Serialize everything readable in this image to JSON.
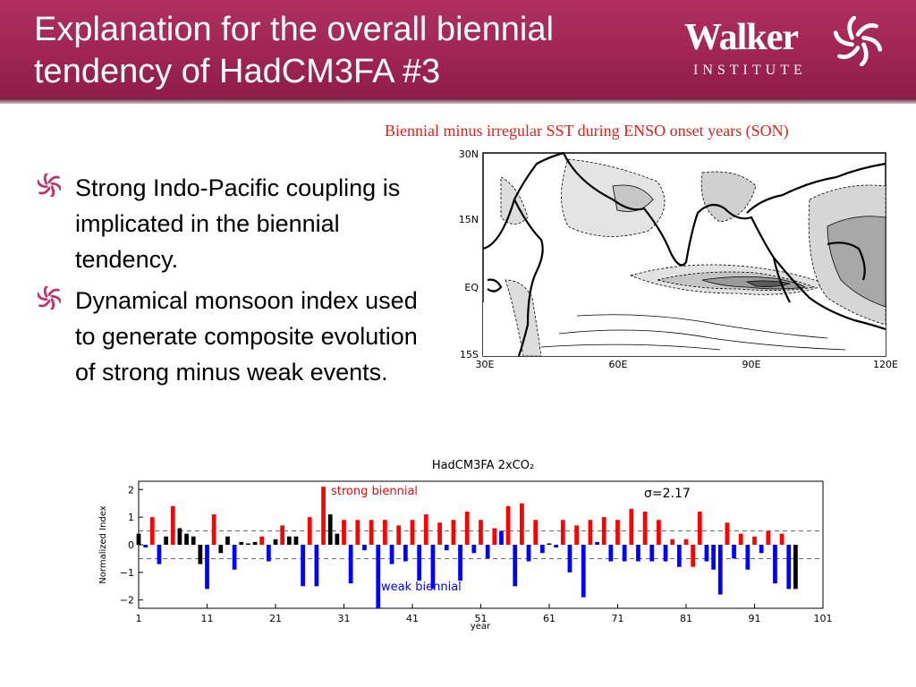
{
  "slide": {
    "title_line1": "Explanation for the overall biennial",
    "title_line2": "tendency of HadCM3FA #3",
    "logo_word": "Walker",
    "logo_sub": "INSTITUTE",
    "map_caption": "Biennial minus irregular SST during ENSO onset years (SON)",
    "bullets": [
      "Strong Indo-Pacific coupling is implicated in the biennial tendency.",
      "Dynamical monsoon index used to generate composite evolution of strong minus weak events."
    ],
    "colors": {
      "header": "#a02554",
      "caption": "#e0201b",
      "strong": "#ff0000",
      "weak": "#0000ff",
      "neutral": "#000000"
    }
  },
  "map": {
    "lat_labels": [
      "30N",
      "15N",
      "EQ",
      "15S"
    ],
    "lon_labels": [
      "30E",
      "60E",
      "90E",
      "120E"
    ]
  },
  "chart_data": {
    "type": "bar",
    "title": "HadCM3FA  2xCO₂",
    "xlabel": "year",
    "ylabel": "Normalized Index",
    "xlim": [
      1,
      101
    ],
    "ylim": [
      -2.3,
      2.3
    ],
    "xticks": [
      1,
      11,
      21,
      31,
      41,
      51,
      61,
      71,
      81,
      91,
      101
    ],
    "yticks": [
      -2,
      -1,
      0,
      1,
      2
    ],
    "threshold_lines": [
      0.5,
      -0.5
    ],
    "annotations": {
      "strong": "strong  biennial",
      "weak": "weak  biennial",
      "sigma": "σ=2.17"
    },
    "years": [
      1,
      2,
      3,
      4,
      5,
      6,
      7,
      8,
      9,
      10,
      11,
      12,
      13,
      14,
      15,
      16,
      17,
      18,
      19,
      20,
      21,
      22,
      23,
      24,
      25,
      26,
      27,
      28,
      29,
      30,
      31,
      32,
      33,
      34,
      35,
      36,
      37,
      38,
      39,
      40,
      41,
      42,
      43,
      44,
      45,
      46,
      47,
      48,
      49,
      50,
      51,
      52,
      53,
      54,
      55,
      56,
      57,
      58,
      59,
      60,
      61,
      62,
      63,
      64,
      65,
      66,
      67,
      68,
      69,
      70,
      71,
      72,
      73,
      74,
      75,
      76,
      77,
      78,
      79,
      80,
      81,
      82,
      83,
      84,
      85,
      86,
      87,
      88,
      89,
      90,
      91,
      92,
      93,
      94,
      95,
      96,
      97
    ],
    "values": [
      0.4,
      -0.1,
      1.0,
      -0.7,
      0.3,
      1.4,
      0.6,
      0.4,
      0.3,
      -0.7,
      -1.6,
      1.1,
      -0.3,
      0.3,
      -0.9,
      0.1,
      0.05,
      0.1,
      0.3,
      -0.6,
      0.2,
      0.7,
      0.3,
      0.3,
      -1.5,
      1.0,
      -1.5,
      2.1,
      1.1,
      0.4,
      0.9,
      -1.4,
      0.9,
      -0.2,
      0.9,
      -2.3,
      0.9,
      -0.7,
      0.7,
      -0.6,
      0.9,
      -1.3,
      1.1,
      -1.6,
      0.8,
      -0.2,
      0.9,
      -1.3,
      1.2,
      -0.3,
      0.9,
      -0.5,
      0.6,
      0.5,
      1.4,
      -1.5,
      1.5,
      -0.6,
      0.9,
      -0.3,
      0.05,
      -0.1,
      0.9,
      -1.0,
      0.7,
      -1.9,
      0.9,
      0.1,
      1.0,
      -0.6,
      0.9,
      -0.6,
      1.3,
      -0.6,
      1.2,
      -0.6,
      0.9,
      -0.6,
      0.2,
      -0.8,
      0.2,
      -0.8,
      1.2,
      -0.6,
      -0.9,
      -1.8,
      0.8,
      -0.5,
      0.4,
      -0.9,
      0.3,
      -0.3,
      0.5,
      -1.4,
      0.4,
      -1.6,
      -1.6
    ],
    "colors": [
      "k",
      "b",
      "r",
      "b",
      "k",
      "r",
      "k",
      "k",
      "k",
      "k",
      "b",
      "r",
      "k",
      "k",
      "b",
      "k",
      "k",
      "k",
      "r",
      "b",
      "k",
      "r",
      "k",
      "k",
      "b",
      "r",
      "b",
      "r",
      "k",
      "k",
      "r",
      "b",
      "r",
      "b",
      "r",
      "b",
      "r",
      "b",
      "r",
      "b",
      "r",
      "b",
      "r",
      "b",
      "r",
      "b",
      "r",
      "b",
      "r",
      "b",
      "r",
      "b",
      "r",
      "b",
      "r",
      "b",
      "r",
      "b",
      "r",
      "b",
      "k",
      "b",
      "r",
      "b",
      "r",
      "b",
      "r",
      "b",
      "r",
      "b",
      "r",
      "b",
      "r",
      "b",
      "r",
      "b",
      "r",
      "b",
      "r",
      "b",
      "r",
      "r",
      "r",
      "b",
      "b",
      "b",
      "r",
      "b",
      "r",
      "b",
      "r",
      "b",
      "r",
      "b",
      "r",
      "b",
      "k"
    ]
  }
}
